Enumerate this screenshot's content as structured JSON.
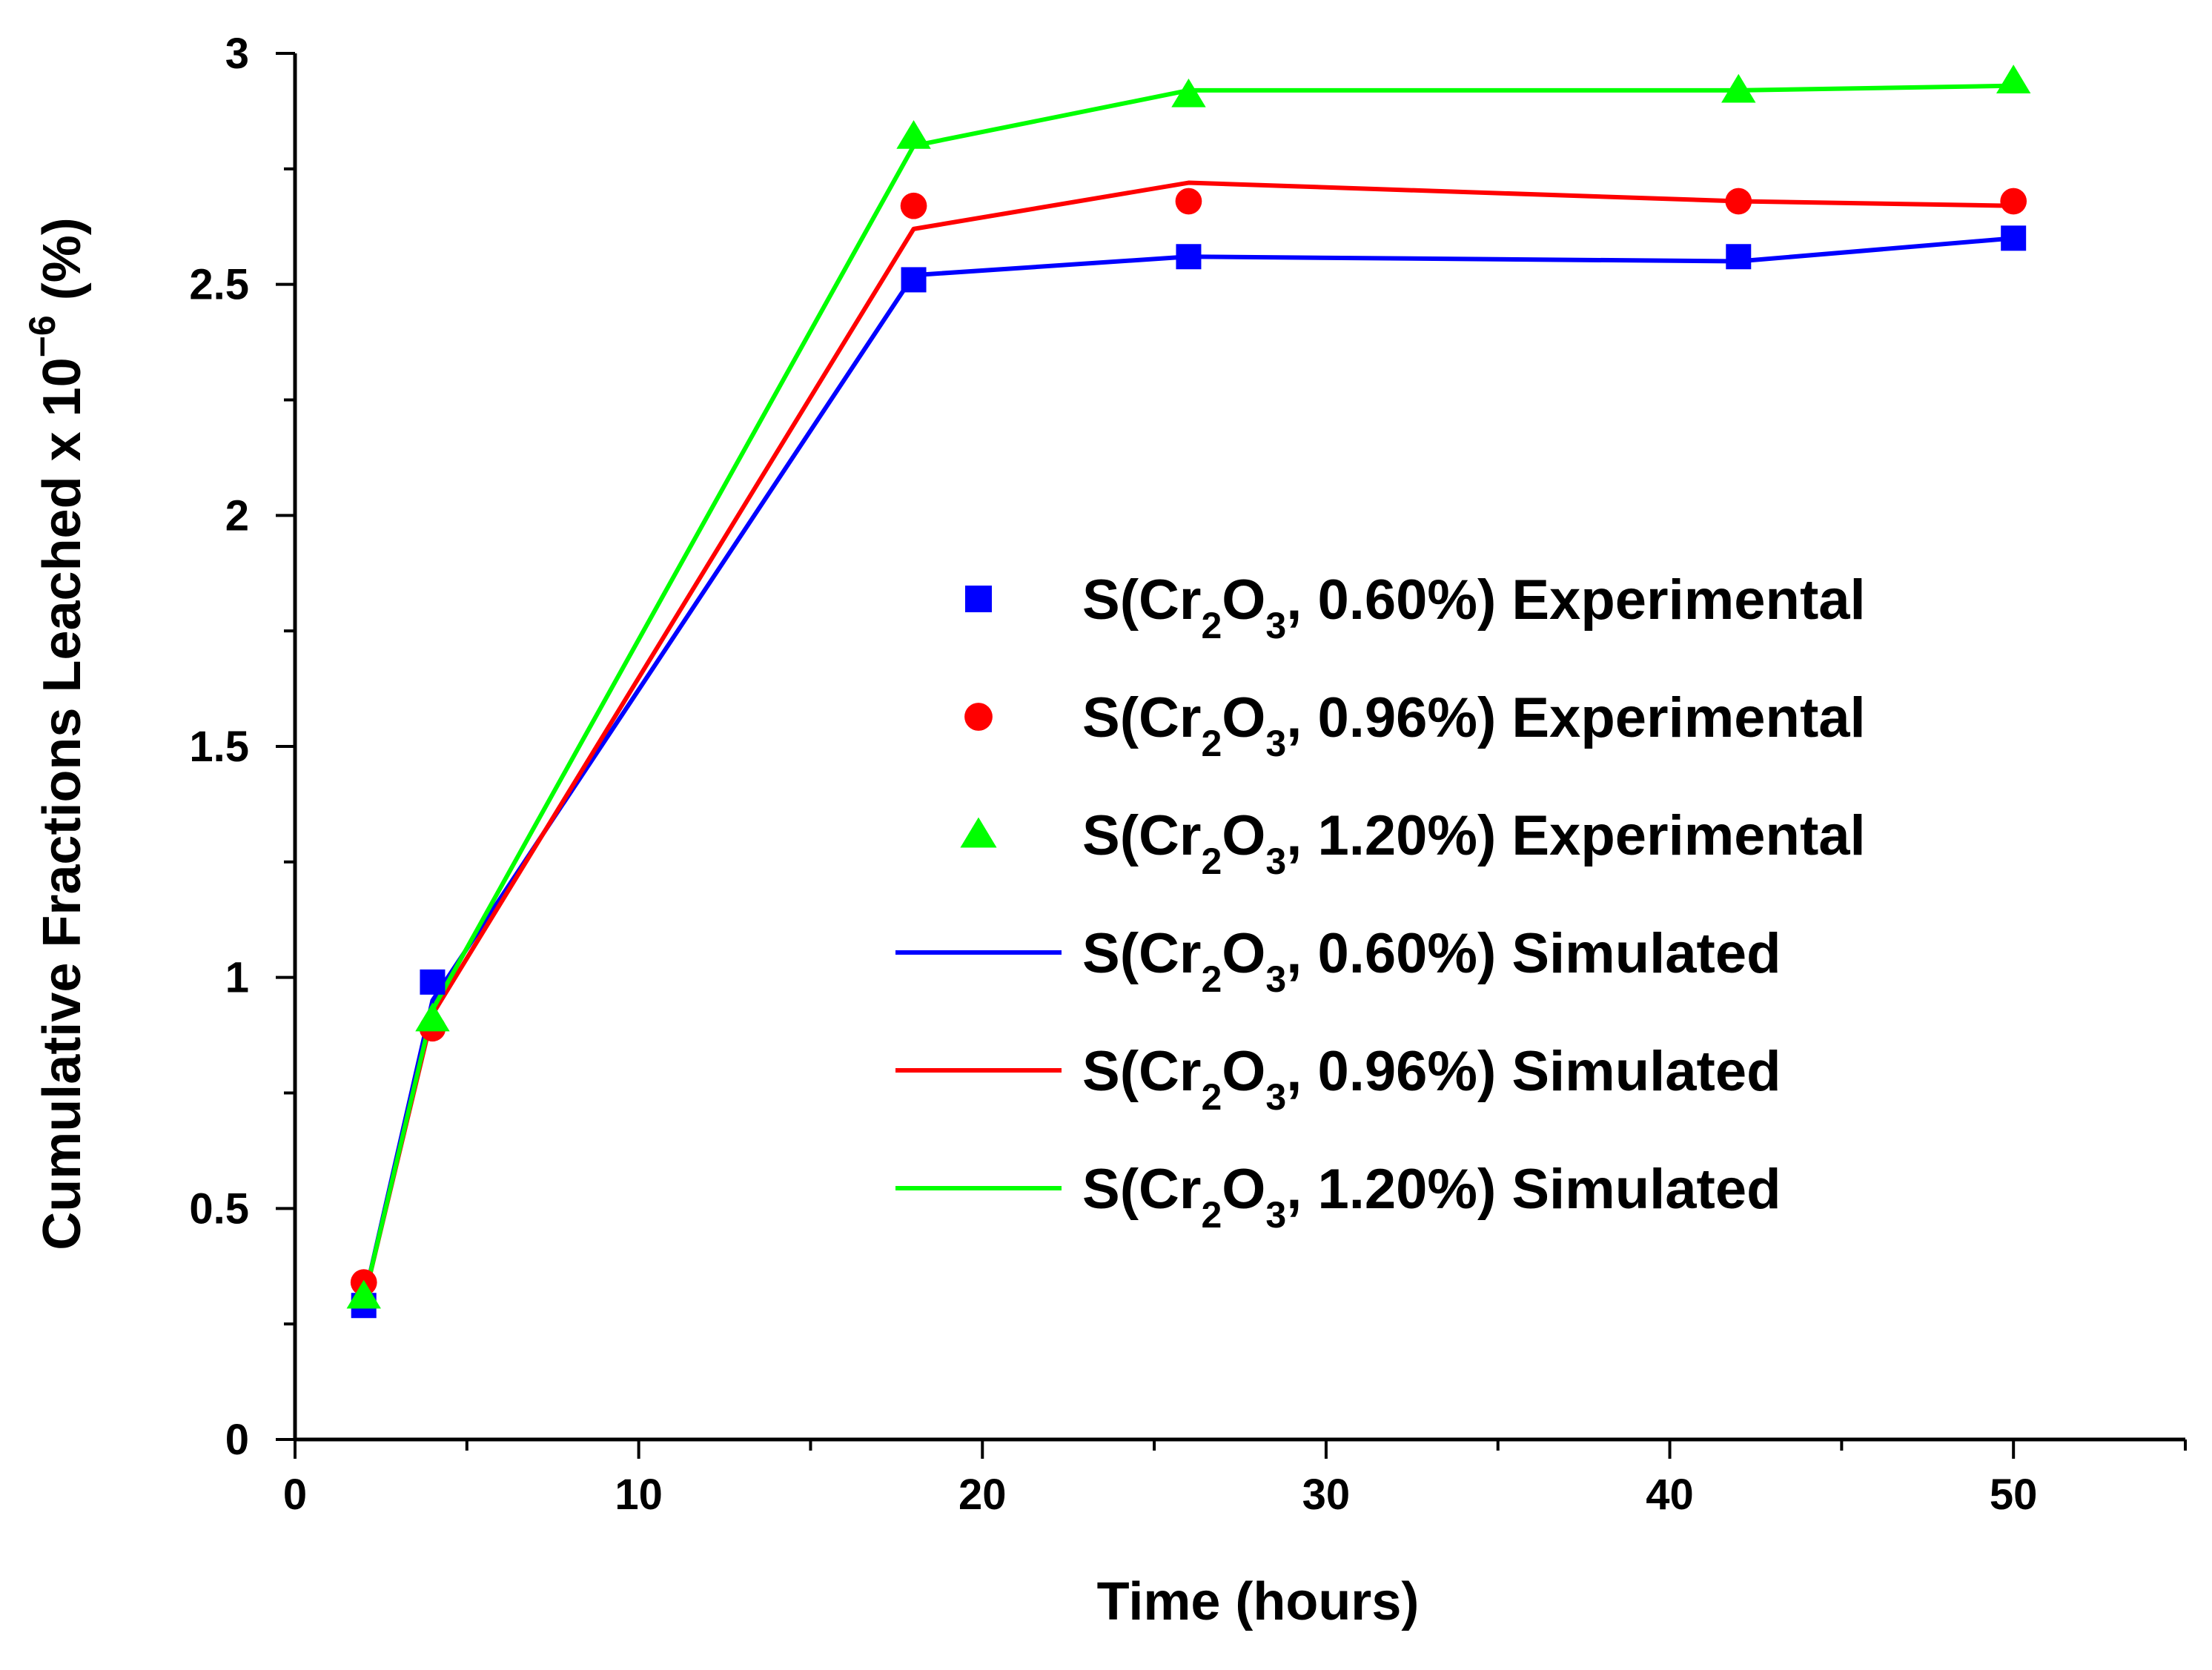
{
  "chart_data": {
    "type": "line",
    "title": "",
    "xlabel": "Time (hours)",
    "ylabel_main": "Cumulative Fractions Leached x 10",
    "ylabel_exponent": "−6",
    "ylabel_unit": " (%)",
    "xlim": [
      0,
      55
    ],
    "ylim": [
      0,
      3
    ],
    "xticks": [
      0,
      10,
      20,
      30,
      40,
      50
    ],
    "xtick_labels": [
      "0",
      "10",
      "20",
      "30",
      "40",
      "50"
    ],
    "yticks": [
      0,
      0.5,
      1,
      1.5,
      2,
      2.5,
      3
    ],
    "ytick_labels": [
      "0",
      "0.5",
      "1",
      "1.5",
      "2",
      "2.5",
      "3"
    ],
    "grid": false,
    "legend_position": "center-right",
    "x": [
      2,
      4,
      18,
      26,
      42,
      50
    ],
    "series": [
      {
        "name": "S(Cr2O3, 0.60%) Experimental",
        "label_parts": [
          "S(Cr",
          "2",
          "O",
          "3",
          ", 0.60%) Experimental"
        ],
        "kind": "markers",
        "marker": "square",
        "color": "#0000FF",
        "values": [
          0.29,
          0.99,
          2.51,
          2.56,
          2.56,
          2.6
        ]
      },
      {
        "name": "S(Cr2O3, 0.96%) Experimental",
        "label_parts": [
          "S(Cr",
          "2",
          "O",
          "3",
          ", 0.96%) Experimental"
        ],
        "kind": "markers",
        "marker": "circle",
        "color": "#FF0000",
        "values": [
          0.34,
          0.89,
          2.67,
          2.68,
          2.68,
          2.68
        ]
      },
      {
        "name": "S(Cr2O3, 1.20%) Experimental",
        "label_parts": [
          "S(Cr",
          "2",
          "O",
          "3",
          ", 1.20%) Experimental"
        ],
        "kind": "markers",
        "marker": "triangle",
        "color": "#00FF00",
        "values": [
          0.31,
          0.91,
          2.82,
          2.91,
          2.92,
          2.94
        ]
      },
      {
        "name": "S(Cr2O3, 0.60%) Simulated",
        "label_parts": [
          "S(Cr",
          "2",
          "O",
          "3",
          ", 0.60%) Simulated"
        ],
        "kind": "line",
        "color": "#0000FF",
        "values": [
          0.3,
          0.95,
          2.52,
          2.56,
          2.55,
          2.6
        ]
      },
      {
        "name": "S(Cr2O3, 0.96%) Simulated",
        "label_parts": [
          "S(Cr",
          "2",
          "O",
          "3",
          ", 0.96%) Simulated"
        ],
        "kind": "line",
        "color": "#FF0000",
        "values": [
          0.3,
          0.92,
          2.62,
          2.72,
          2.68,
          2.67
        ]
      },
      {
        "name": "S(Cr2O3, 1.20%) Simulated",
        "label_parts": [
          "S(Cr",
          "2",
          "O",
          "3",
          ", 1.20%) Simulated"
        ],
        "kind": "line",
        "color": "#00FF00",
        "values": [
          0.3,
          0.93,
          2.8,
          2.92,
          2.92,
          2.93
        ]
      }
    ]
  }
}
